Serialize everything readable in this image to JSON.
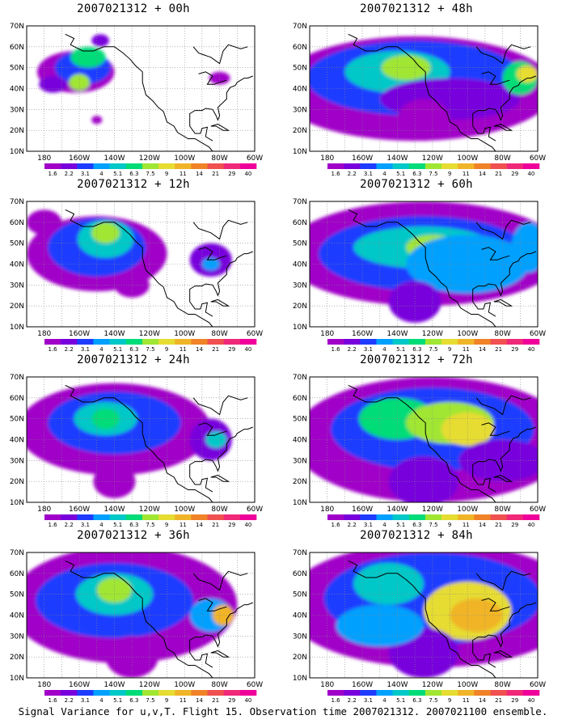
{
  "footer": "Signal Variance for u,v,T. Flight 15. Observation time 2007021312. 2007021100 ensemble.",
  "panels": [
    {
      "title": "2007021312 + 00h"
    },
    {
      "title": "2007021312 + 48h"
    },
    {
      "title": "2007021312 + 12h"
    },
    {
      "title": "2007021312 + 60h"
    },
    {
      "title": "2007021312 + 24h"
    },
    {
      "title": "2007021312 + 72h"
    },
    {
      "title": "2007021312 + 36h"
    },
    {
      "title": "2007021312 + 84h"
    }
  ],
  "axes": {
    "lat_labels": [
      "10N",
      "20N",
      "30N",
      "40N",
      "50N",
      "60N",
      "70N"
    ],
    "lon_labels": [
      "180",
      "160W",
      "140W",
      "120W",
      "100W",
      "80W",
      "60W"
    ]
  },
  "colorbar": {
    "labels": [
      "1.6",
      "2.2",
      "3.1",
      "4",
      "5.1",
      "6.3",
      "7.5",
      "9",
      "11",
      "14",
      "21",
      "29",
      "40"
    ],
    "colors": [
      "#a000c8",
      "#7800dc",
      "#1e3cff",
      "#00a0ff",
      "#00c8c8",
      "#00dc78",
      "#a0e632",
      "#e6dc32",
      "#f0b428",
      "#f08228",
      "#f05050",
      "#f02878",
      "#f0009a"
    ]
  },
  "map_data": {
    "extent": {
      "lon": [
        -190,
        -60
      ],
      "lat": [
        10,
        70
      ]
    },
    "panels": [
      {
        "blobs": [
          [
            -162,
            48,
            22,
            10,
            0
          ],
          [
            -158,
            50,
            16,
            8,
            2
          ],
          [
            -155,
            55,
            10,
            5,
            5
          ],
          [
            -160,
            43,
            6,
            4,
            6
          ],
          [
            -148,
            63,
            5,
            3,
            1
          ],
          [
            -80,
            45,
            6,
            3,
            0
          ],
          [
            -175,
            42,
            8,
            4,
            1
          ],
          [
            -150,
            25,
            3,
            2,
            0
          ]
        ]
      },
      {
        "blobs": [
          [
            -130,
            40,
            80,
            25,
            0
          ],
          [
            -130,
            45,
            62,
            18,
            2
          ],
          [
            -140,
            48,
            30,
            10,
            4
          ],
          [
            -135,
            50,
            14,
            6,
            6
          ],
          [
            -110,
            35,
            40,
            10,
            1
          ],
          [
            -70,
            45,
            10,
            8,
            5
          ],
          [
            -66,
            47,
            6,
            4,
            7
          ],
          [
            -125,
            25,
            15,
            10,
            0
          ]
        ]
      },
      {
        "blobs": [
          [
            -150,
            45,
            40,
            18,
            0
          ],
          [
            -150,
            48,
            28,
            14,
            2
          ],
          [
            -145,
            52,
            16,
            9,
            4
          ],
          [
            -145,
            55,
            8,
            5,
            6
          ],
          [
            -85,
            42,
            12,
            8,
            1
          ],
          [
            -85,
            40,
            5,
            3,
            3
          ],
          [
            -130,
            30,
            10,
            6,
            0
          ],
          [
            -180,
            60,
            10,
            6,
            0
          ]
        ]
      },
      {
        "blobs": [
          [
            -125,
            45,
            80,
            25,
            0
          ],
          [
            -125,
            45,
            60,
            18,
            2
          ],
          [
            -125,
            48,
            40,
            10,
            4
          ],
          [
            -120,
            48,
            15,
            6,
            6
          ],
          [
            -100,
            40,
            35,
            14,
            3
          ],
          [
            -130,
            22,
            15,
            10,
            1
          ],
          [
            -65,
            48,
            10,
            12,
            3
          ]
        ]
      },
      {
        "blobs": [
          [
            -140,
            45,
            55,
            22,
            0
          ],
          [
            -140,
            48,
            38,
            15,
            2
          ],
          [
            -145,
            50,
            18,
            8,
            4
          ],
          [
            -145,
            50,
            8,
            5,
            5
          ],
          [
            -85,
            40,
            12,
            10,
            1
          ],
          [
            -82,
            40,
            6,
            4,
            4
          ],
          [
            -140,
            20,
            12,
            8,
            0
          ]
        ]
      },
      {
        "blobs": [
          [
            -120,
            40,
            80,
            30,
            0
          ],
          [
            -120,
            45,
            58,
            20,
            2
          ],
          [
            -140,
            50,
            22,
            10,
            5
          ],
          [
            -110,
            48,
            25,
            10,
            6
          ],
          [
            -100,
            45,
            15,
            8,
            7
          ],
          [
            -125,
            20,
            20,
            12,
            1
          ],
          [
            -80,
            30,
            25,
            10,
            1
          ]
        ]
      },
      {
        "blobs": [
          [
            -135,
            45,
            65,
            28,
            0
          ],
          [
            -140,
            47,
            45,
            18,
            2
          ],
          [
            -140,
            50,
            22,
            10,
            4
          ],
          [
            -140,
            52,
            10,
            6,
            6
          ],
          [
            -85,
            40,
            12,
            8,
            3
          ],
          [
            -78,
            40,
            6,
            5,
            8
          ],
          [
            -130,
            20,
            15,
            10,
            0
          ]
        ]
      },
      {
        "blobs": [
          [
            -120,
            45,
            85,
            30,
            0
          ],
          [
            -120,
            48,
            62,
            22,
            2
          ],
          [
            -145,
            55,
            20,
            10,
            4
          ],
          [
            -100,
            42,
            25,
            14,
            7
          ],
          [
            -95,
            40,
            15,
            8,
            8
          ],
          [
            -125,
            22,
            20,
            12,
            1
          ],
          [
            -150,
            35,
            25,
            10,
            3
          ]
        ]
      }
    ]
  }
}
